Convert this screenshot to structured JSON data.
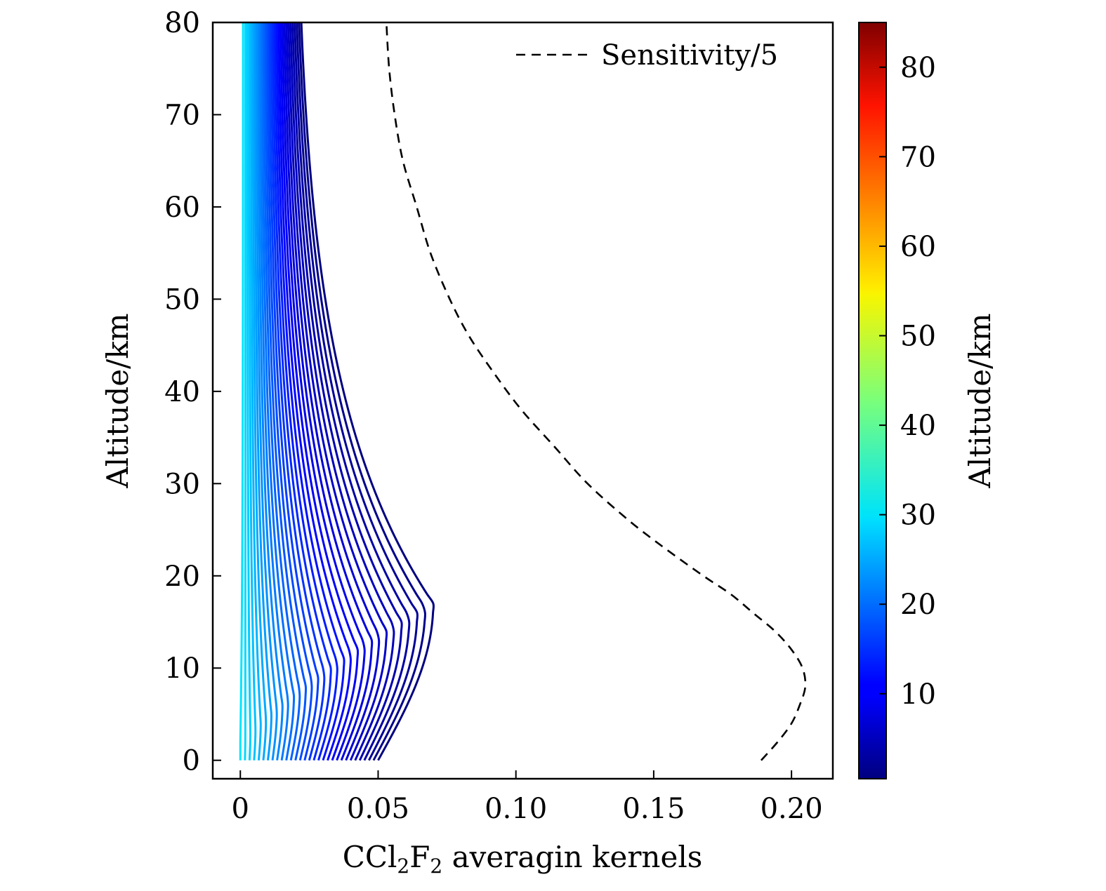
{
  "chart_data": {
    "type": "line",
    "xlabel_prefix": "CCl",
    "xlabel_sub1": "2",
    "xlabel_mid": "F",
    "xlabel_sub2": "2",
    "xlabel_suffix": " averagin kernels",
    "ylabel": "Altitude/km",
    "colorbar_label": "Altitude/km",
    "xlim": [
      -0.01,
      0.215
    ],
    "ylim": [
      -2,
      80
    ],
    "x_ticks": [
      0,
      0.05,
      0.1,
      0.15,
      0.2
    ],
    "x_tick_labels": [
      "0",
      "0.05",
      "0.10",
      "0.15",
      "0.20"
    ],
    "y_ticks": [
      0,
      10,
      20,
      30,
      40,
      50,
      60,
      70,
      80
    ],
    "y_tick_labels": [
      "0",
      "10",
      "20",
      "30",
      "40",
      "50",
      "60",
      "70",
      "80"
    ],
    "colorbar_range": [
      0.5,
      85
    ],
    "colorbar_ticks": [
      10,
      20,
      30,
      40,
      50,
      60,
      70,
      80
    ],
    "colorbar_tick_labels": [
      "10",
      "20",
      "30",
      "40",
      "50",
      "60",
      "70",
      "80"
    ],
    "colormap": "jet",
    "grid": false,
    "legend": {
      "location": "top-right",
      "entries": [
        "Sensitivity/5"
      ]
    },
    "sensitivity_series": {
      "name": "Sensitivity/5",
      "style": "dashed",
      "color": "#000000",
      "points": [
        [
          0.189,
          0
        ],
        [
          0.195,
          2
        ],
        [
          0.2,
          4
        ],
        [
          0.203,
          6
        ],
        [
          0.205,
          8
        ],
        [
          0.204,
          10
        ],
        [
          0.2,
          12
        ],
        [
          0.194,
          14
        ],
        [
          0.186,
          16
        ],
        [
          0.178,
          18
        ],
        [
          0.168,
          20
        ],
        [
          0.154,
          23
        ],
        [
          0.141,
          26
        ],
        [
          0.126,
          30
        ],
        [
          0.114,
          34
        ],
        [
          0.102,
          38
        ],
        [
          0.092,
          42
        ],
        [
          0.083,
          46
        ],
        [
          0.076,
          50
        ],
        [
          0.069,
          55
        ],
        [
          0.064,
          60
        ],
        [
          0.059,
          65
        ],
        [
          0.056,
          70
        ],
        [
          0.054,
          75
        ],
        [
          0.053,
          80
        ]
      ]
    },
    "kernel_series": {
      "description": "Averaging kernels for each retrieval level; line colour encodes nominal altitude (km) via colormap",
      "count": 31,
      "nominal_altitude_range": [
        0.5,
        30
      ],
      "surface_value_range": [
        0.0,
        0.05
      ],
      "max_peak_value": 0.066,
      "peak_altitude_range": [
        2,
        17
      ],
      "top_value_range": [
        0.001,
        0.019
      ]
    }
  }
}
